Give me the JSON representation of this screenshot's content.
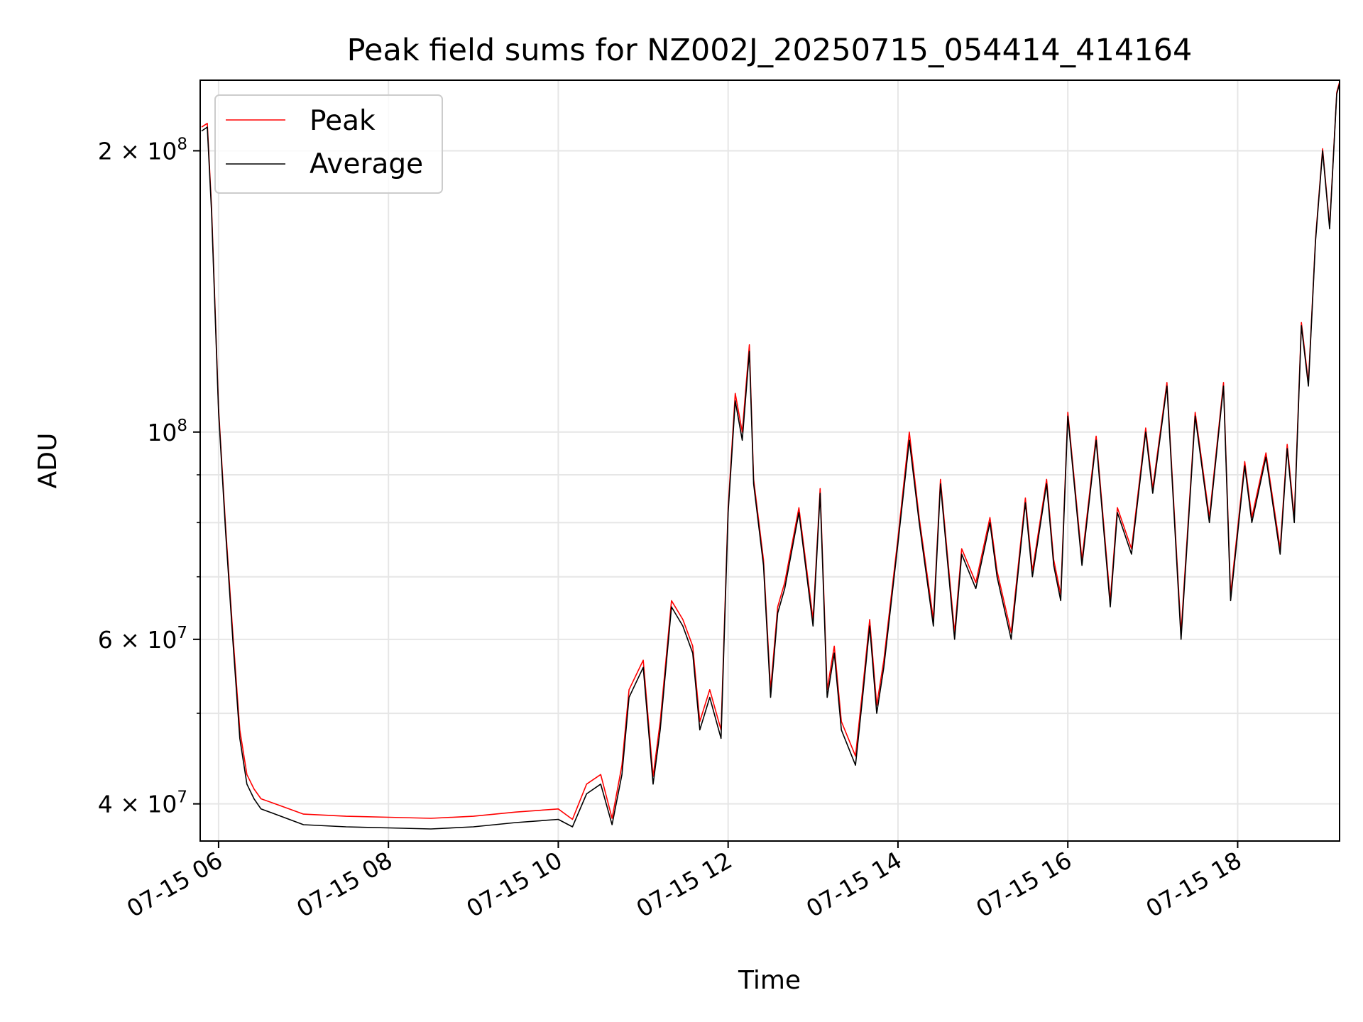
{
  "chart_data": {
    "type": "line",
    "title": "Peak field sums for NZ002J_20250715_054414_414164",
    "xlabel": "Time",
    "ylabel": "ADU",
    "x_scale": "time",
    "y_scale": "log",
    "xlim": [
      "2025-07-15 05:47",
      "2025-07-15 19:12"
    ],
    "ylim": [
      36500000,
      238000000
    ],
    "grid": true,
    "legend": "top-left",
    "x_ticks": [
      {
        "value": "2025-07-15 06:00",
        "label": "07-15 06"
      },
      {
        "value": "2025-07-15 08:00",
        "label": "07-15 08"
      },
      {
        "value": "2025-07-15 10:00",
        "label": "07-15 10"
      },
      {
        "value": "2025-07-15 12:00",
        "label": "07-15 12"
      },
      {
        "value": "2025-07-15 14:00",
        "label": "07-15 14"
      },
      {
        "value": "2025-07-15 16:00",
        "label": "07-15 16"
      },
      {
        "value": "2025-07-15 18:00",
        "label": "07-15 18"
      }
    ],
    "y_ticks_major": [
      {
        "value": 40000000,
        "label": "4 × 10",
        "exp": "7"
      },
      {
        "value": 60000000,
        "label": "6 × 10",
        "exp": "7"
      },
      {
        "value": 100000000,
        "label": "10",
        "exp": "8"
      },
      {
        "value": 200000000,
        "label": "2 × 10",
        "exp": "8"
      }
    ],
    "y_ticks_minor": [
      50000000,
      70000000,
      80000000,
      90000000
    ],
    "series": [
      {
        "name": "Average",
        "color": "#000000",
        "x": [
          "2025-07-15 05:48",
          "2025-07-15 05:52",
          "2025-07-15 05:55",
          "2025-07-15 06:00",
          "2025-07-15 06:05",
          "2025-07-15 06:10",
          "2025-07-15 06:15",
          "2025-07-15 06:20",
          "2025-07-15 06:25",
          "2025-07-15 06:30",
          "2025-07-15 06:40",
          "2025-07-15 07:00",
          "2025-07-15 07:30",
          "2025-07-15 08:00",
          "2025-07-15 08:30",
          "2025-07-15 09:00",
          "2025-07-15 09:30",
          "2025-07-15 10:00",
          "2025-07-15 10:10",
          "2025-07-15 10:20",
          "2025-07-15 10:30",
          "2025-07-15 10:38",
          "2025-07-15 10:45",
          "2025-07-15 10:50",
          "2025-07-15 11:00",
          "2025-07-15 11:07",
          "2025-07-15 11:12",
          "2025-07-15 11:20",
          "2025-07-15 11:28",
          "2025-07-15 11:35",
          "2025-07-15 11:40",
          "2025-07-15 11:47",
          "2025-07-15 11:55",
          "2025-07-15 12:00",
          "2025-07-15 12:05",
          "2025-07-15 12:10",
          "2025-07-15 12:15",
          "2025-07-15 12:18",
          "2025-07-15 12:25",
          "2025-07-15 12:30",
          "2025-07-15 12:35",
          "2025-07-15 12:40",
          "2025-07-15 12:50",
          "2025-07-15 13:00",
          "2025-07-15 13:05",
          "2025-07-15 13:10",
          "2025-07-15 13:15",
          "2025-07-15 13:20",
          "2025-07-15 13:30",
          "2025-07-15 13:35",
          "2025-07-15 13:40",
          "2025-07-15 13:45",
          "2025-07-15 13:50",
          "2025-07-15 14:00",
          "2025-07-15 14:08",
          "2025-07-15 14:15",
          "2025-07-15 14:25",
          "2025-07-15 14:30",
          "2025-07-15 14:40",
          "2025-07-15 14:45",
          "2025-07-15 14:55",
          "2025-07-15 15:05",
          "2025-07-15 15:10",
          "2025-07-15 15:20",
          "2025-07-15 15:30",
          "2025-07-15 15:35",
          "2025-07-15 15:45",
          "2025-07-15 15:50",
          "2025-07-15 15:55",
          "2025-07-15 16:00",
          "2025-07-15 16:10",
          "2025-07-15 16:20",
          "2025-07-15 16:30",
          "2025-07-15 16:35",
          "2025-07-15 16:45",
          "2025-07-15 16:55",
          "2025-07-15 17:00",
          "2025-07-15 17:10",
          "2025-07-15 17:20",
          "2025-07-15 17:30",
          "2025-07-15 17:40",
          "2025-07-15 17:50",
          "2025-07-15 17:55",
          "2025-07-15 18:05",
          "2025-07-15 18:10",
          "2025-07-15 18:20",
          "2025-07-15 18:30",
          "2025-07-15 18:35",
          "2025-07-15 18:40",
          "2025-07-15 18:45",
          "2025-07-15 18:50",
          "2025-07-15 18:55",
          "2025-07-15 19:00",
          "2025-07-15 19:05",
          "2025-07-15 19:10",
          "2025-07-15 19:12"
        ],
        "y": [
          210000000,
          212000000,
          172000000,
          105000000,
          78000000,
          60000000,
          47000000,
          42000000,
          40500000,
          39500000,
          39000000,
          38000000,
          37800000,
          37700000,
          37600000,
          37800000,
          38200000,
          38500000,
          37800000,
          41000000,
          42000000,
          38000000,
          43000000,
          52000000,
          56000000,
          42000000,
          48000000,
          65000000,
          62000000,
          58000000,
          48000000,
          52000000,
          47000000,
          82000000,
          108000000,
          98000000,
          122000000,
          88000000,
          72000000,
          52000000,
          64000000,
          68000000,
          82000000,
          62000000,
          86000000,
          52000000,
          58000000,
          48000000,
          44000000,
          52000000,
          62000000,
          50000000,
          56000000,
          76000000,
          98000000,
          80000000,
          62000000,
          88000000,
          60000000,
          74000000,
          68000000,
          80000000,
          70000000,
          60000000,
          84000000,
          70000000,
          88000000,
          72000000,
          66000000,
          104000000,
          72000000,
          98000000,
          65000000,
          82000000,
          74000000,
          100000000,
          86000000,
          112000000,
          60000000,
          104000000,
          80000000,
          112000000,
          66000000,
          92000000,
          80000000,
          94000000,
          74000000,
          96000000,
          80000000,
          130000000,
          112000000,
          160000000,
          200000000,
          165000000,
          230000000,
          236000000
        ]
      },
      {
        "name": "Peak",
        "color": "#ff0000",
        "x": [
          "2025-07-15 05:48",
          "2025-07-15 05:52",
          "2025-07-15 05:55",
          "2025-07-15 06:00",
          "2025-07-15 06:05",
          "2025-07-15 06:10",
          "2025-07-15 06:15",
          "2025-07-15 06:20",
          "2025-07-15 06:25",
          "2025-07-15 06:30",
          "2025-07-15 06:40",
          "2025-07-15 07:00",
          "2025-07-15 07:30",
          "2025-07-15 08:00",
          "2025-07-15 08:30",
          "2025-07-15 09:00",
          "2025-07-15 09:30",
          "2025-07-15 10:00",
          "2025-07-15 10:10",
          "2025-07-15 10:20",
          "2025-07-15 10:30",
          "2025-07-15 10:38",
          "2025-07-15 10:45",
          "2025-07-15 10:50",
          "2025-07-15 11:00",
          "2025-07-15 11:07",
          "2025-07-15 11:12",
          "2025-07-15 11:20",
          "2025-07-15 11:28",
          "2025-07-15 11:35",
          "2025-07-15 11:40",
          "2025-07-15 11:47",
          "2025-07-15 11:55",
          "2025-07-15 12:00",
          "2025-07-15 12:05",
          "2025-07-15 12:10",
          "2025-07-15 12:15",
          "2025-07-15 12:18",
          "2025-07-15 12:25",
          "2025-07-15 12:30",
          "2025-07-15 12:35",
          "2025-07-15 12:40",
          "2025-07-15 12:50",
          "2025-07-15 13:00",
          "2025-07-15 13:05",
          "2025-07-15 13:10",
          "2025-07-15 13:15",
          "2025-07-15 13:20",
          "2025-07-15 13:30",
          "2025-07-15 13:35",
          "2025-07-15 13:40",
          "2025-07-15 13:45",
          "2025-07-15 13:50",
          "2025-07-15 14:00",
          "2025-07-15 14:08",
          "2025-07-15 14:15",
          "2025-07-15 14:25",
          "2025-07-15 14:30",
          "2025-07-15 14:40",
          "2025-07-15 14:45",
          "2025-07-15 14:55",
          "2025-07-15 15:05",
          "2025-07-15 15:10",
          "2025-07-15 15:20",
          "2025-07-15 15:30",
          "2025-07-15 15:35",
          "2025-07-15 15:45",
          "2025-07-15 15:50",
          "2025-07-15 15:55",
          "2025-07-15 16:00",
          "2025-07-15 16:10",
          "2025-07-15 16:20",
          "2025-07-15 16:30",
          "2025-07-15 16:35",
          "2025-07-15 16:45",
          "2025-07-15 16:55",
          "2025-07-15 17:00",
          "2025-07-15 17:10",
          "2025-07-15 17:20",
          "2025-07-15 17:30",
          "2025-07-15 17:40",
          "2025-07-15 17:50",
          "2025-07-15 17:55",
          "2025-07-15 18:05",
          "2025-07-15 18:10",
          "2025-07-15 18:20",
          "2025-07-15 18:30",
          "2025-07-15 18:35",
          "2025-07-15 18:40",
          "2025-07-15 18:45",
          "2025-07-15 18:50",
          "2025-07-15 18:55",
          "2025-07-15 19:00",
          "2025-07-15 19:05",
          "2025-07-15 19:10",
          "2025-07-15 19:12"
        ],
        "y": [
          212000000,
          214000000,
          174000000,
          106000000,
          79000000,
          61000000,
          48000000,
          43000000,
          41500000,
          40500000,
          40000000,
          39000000,
          38800000,
          38700000,
          38600000,
          38800000,
          39200000,
          39500000,
          38500000,
          42000000,
          43000000,
          38600000,
          44000000,
          53000000,
          57000000,
          42800000,
          49000000,
          66000000,
          63000000,
          59000000,
          49000000,
          53000000,
          48000000,
          83000000,
          110000000,
          100000000,
          124000000,
          89000000,
          73000000,
          53000000,
          65000000,
          69000000,
          83000000,
          63000000,
          87000000,
          53000000,
          59000000,
          49000000,
          45000000,
          53000000,
          63000000,
          51000000,
          57000000,
          77000000,
          100000000,
          81000000,
          63000000,
          89000000,
          61000000,
          75000000,
          69000000,
          81000000,
          71000000,
          61000000,
          85000000,
          71000000,
          89000000,
          73000000,
          67000000,
          105000000,
          73000000,
          99000000,
          66000000,
          83000000,
          75000000,
          101000000,
          87000000,
          113000000,
          61000000,
          105000000,
          81000000,
          113000000,
          67000000,
          93000000,
          81000000,
          95000000,
          75000000,
          97000000,
          81000000,
          131000000,
          113000000,
          161000000,
          201000000,
          166000000,
          231000000,
          237000000
        ]
      }
    ]
  }
}
